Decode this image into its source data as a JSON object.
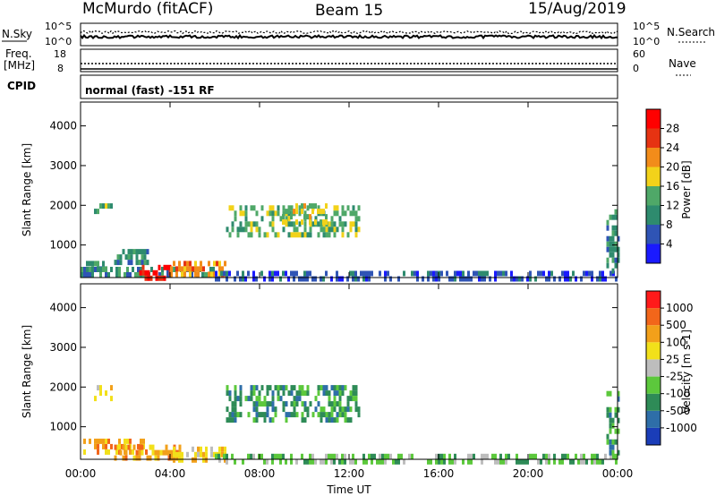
{
  "header": {
    "station": "McMurdo (fitACF)",
    "beam": "Beam 15",
    "date": "15/Aug/2019"
  },
  "top_panels": {
    "nsky_label": "N.Sky",
    "nsearch_label": "N.Search",
    "nsky_ticks": [
      "10^5",
      "10^0"
    ],
    "nsearch_ticks": [
      "10^5",
      "10^0"
    ],
    "freq_label_1": "Freq.",
    "freq_label_2": "[MHz]",
    "freq_ticks": [
      "18",
      "8"
    ],
    "nave_label": "Nave",
    "nave_ticks": [
      "60",
      "0"
    ],
    "cpid_label": "CPID",
    "cpid_text": "normal (fast) -151 RF"
  },
  "chart_data": [
    {
      "type": "heatmap",
      "name": "power",
      "ylabel": "Slant Range [km]",
      "yticks": [
        "1000",
        "2000",
        "3000",
        "4000"
      ],
      "ylim": [
        180,
        4600
      ],
      "xlim": [
        0,
        24
      ],
      "colorbar_label": "Power [dB]",
      "colorbar_ticks": [
        "4",
        "8",
        "12",
        "16",
        "20",
        "24",
        "28"
      ],
      "colors": [
        "#1a1aff",
        "#2f54b5",
        "#2e8b6e",
        "#4fa868",
        "#f2d21a",
        "#f28c1a",
        "#e63312",
        "#ff0000"
      ],
      "regions": [
        {
          "t0": 0.6,
          "t1": 1.4,
          "r0": 1800,
          "r1": 2050,
          "level": 3
        },
        {
          "t0": 0.0,
          "t1": 1.2,
          "r0": 350,
          "r1": 600,
          "level": 2
        },
        {
          "t0": 0.0,
          "t1": 6.0,
          "r0": 200,
          "r1": 450,
          "level": 2
        },
        {
          "t0": 1.5,
          "t1": 3.0,
          "r0": 600,
          "r1": 900,
          "level": 2
        },
        {
          "t0": 2.5,
          "t1": 4.0,
          "r0": 200,
          "r1": 500,
          "level": 7
        },
        {
          "t0": 4.0,
          "t1": 6.5,
          "r0": 300,
          "r1": 600,
          "level": 5
        },
        {
          "t0": 6.5,
          "t1": 12.5,
          "r0": 1300,
          "r1": 2000,
          "level": 3
        },
        {
          "t0": 9.0,
          "t1": 11.0,
          "r0": 1600,
          "r1": 2050,
          "level": 4
        },
        {
          "t0": 6.0,
          "t1": 24.0,
          "r0": 180,
          "r1": 350,
          "level": 1
        },
        {
          "t0": 23.5,
          "t1": 24.0,
          "r0": 400,
          "r1": 1900,
          "level": 2
        }
      ]
    },
    {
      "type": "heatmap",
      "name": "velocity",
      "ylabel": "Slant Range [km]",
      "yticks": [
        "1000",
        "2000",
        "3000",
        "4000"
      ],
      "ylim": [
        180,
        4600
      ],
      "xlim": [
        0,
        24
      ],
      "xticks": [
        "00:00",
        "04:00",
        "08:00",
        "12:00",
        "16:00",
        "20:00",
        "00:00"
      ],
      "xlabel": "Time UT",
      "colorbar_label": "Velocity [m s-1]",
      "colorbar_ticks": [
        "1000",
        "500",
        "100",
        "25",
        "-25",
        "-100",
        "-500",
        "-1000"
      ],
      "colors": [
        "#1a3db8",
        "#2e6ea8",
        "#2e8b57",
        "#5cc83c",
        "#bdbdbd",
        "#f2e01a",
        "#f2a01a",
        "#f2661a",
        "#ff1a1a"
      ],
      "regions": [
        {
          "t0": 0.6,
          "t1": 1.4,
          "r0": 1700,
          "r1": 2050,
          "level": 5
        },
        {
          "t0": 0.0,
          "t1": 3.0,
          "r0": 400,
          "r1": 700,
          "level": 6
        },
        {
          "t0": 1.5,
          "t1": 4.5,
          "r0": 200,
          "r1": 550,
          "level": 6
        },
        {
          "t0": 4.0,
          "t1": 6.5,
          "r0": 200,
          "r1": 500,
          "level": 5
        },
        {
          "t0": 6.5,
          "t1": 12.5,
          "r0": 1200,
          "r1": 2050,
          "level": 2
        },
        {
          "t0": 6.0,
          "t1": 24.0,
          "r0": 180,
          "r1": 320,
          "level": 3
        },
        {
          "t0": 23.5,
          "t1": 24.0,
          "r0": 400,
          "r1": 1900,
          "level": 2
        }
      ]
    }
  ]
}
